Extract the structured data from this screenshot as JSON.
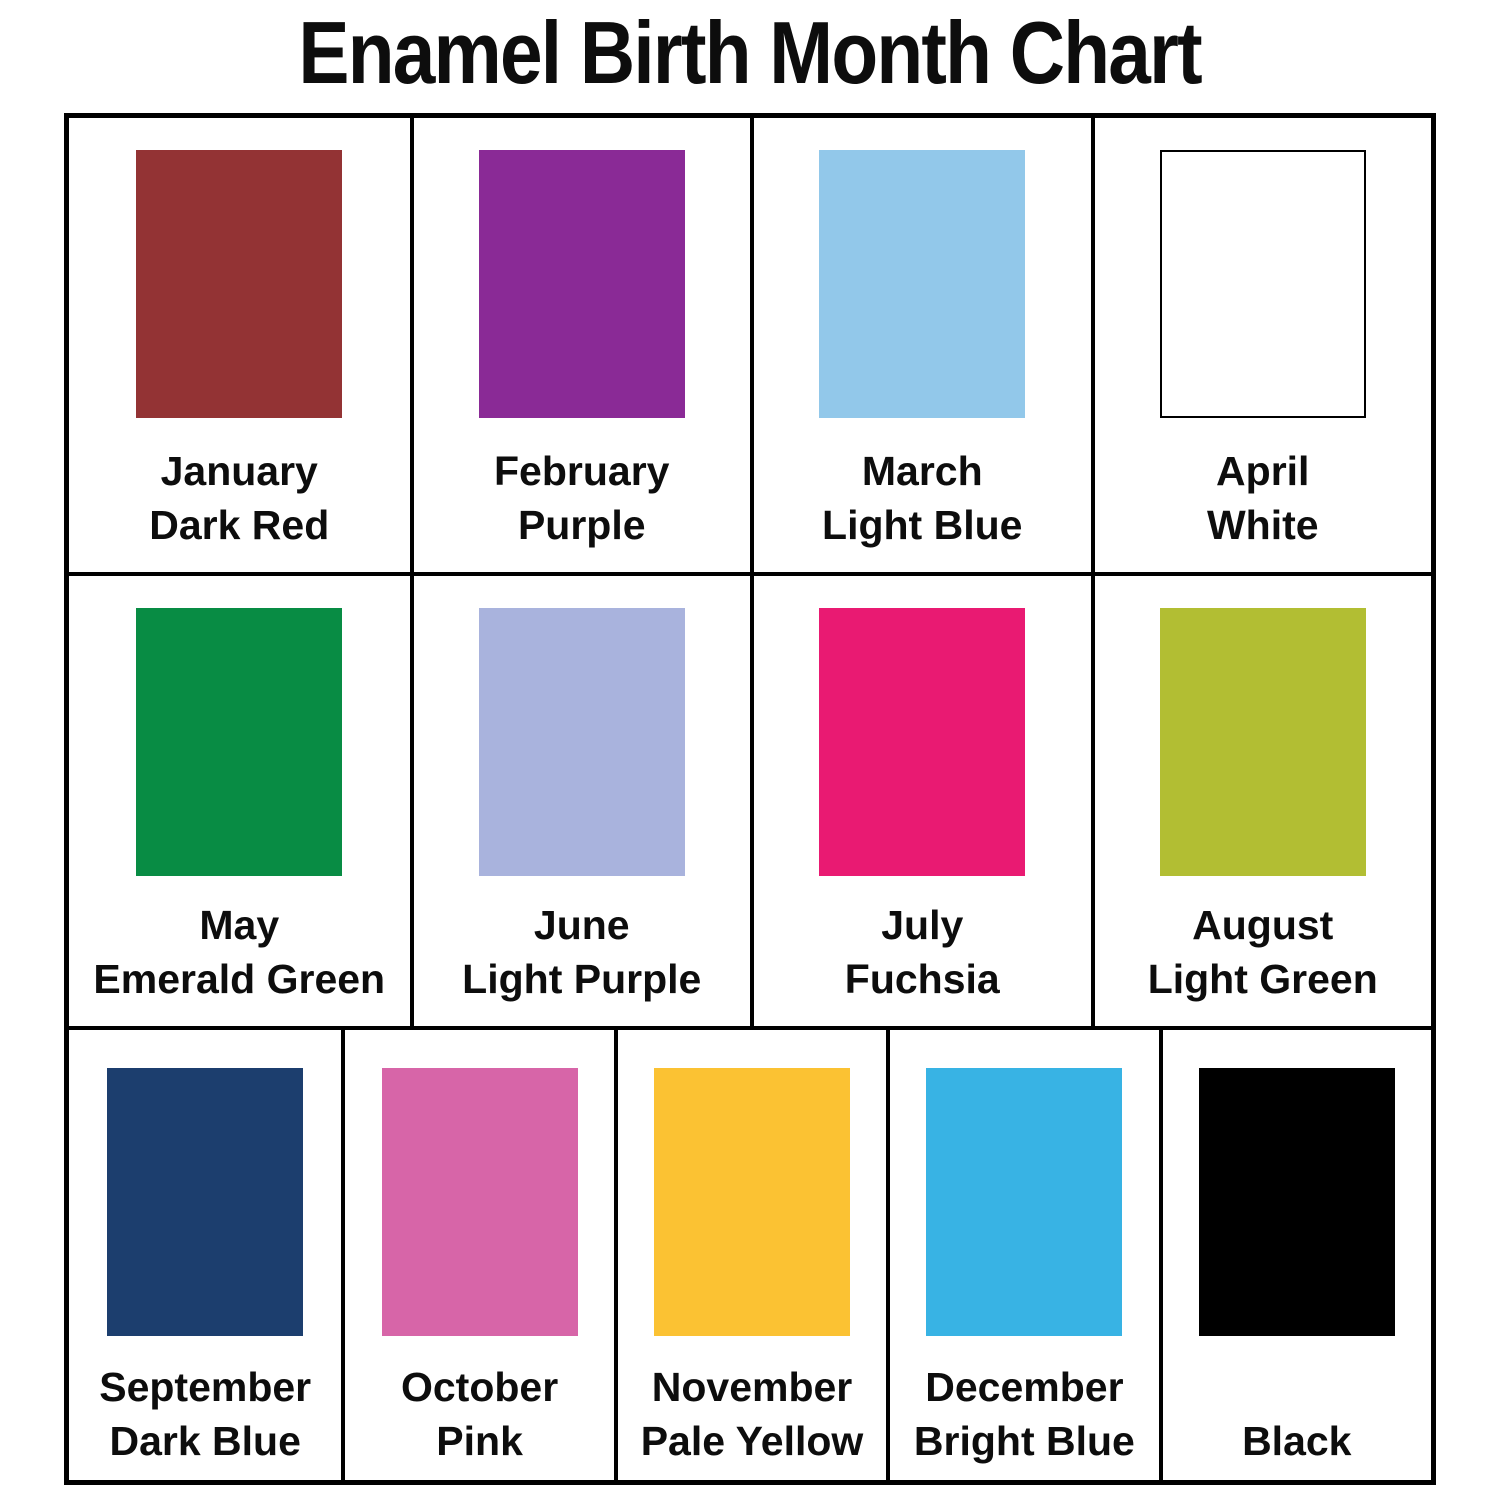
{
  "title": "Enamel Birth Month Chart",
  "palette": {
    "background": "#ffffff",
    "grid_border": "#000000",
    "label_text": "#0d0d0d"
  },
  "chart_data": {
    "type": "table",
    "title": "Enamel Birth Month Chart",
    "description": "Grid of enamel color swatches by birth month",
    "rows_layout": [
      4,
      4,
      5
    ],
    "entries": [
      {
        "month": "January",
        "color": "Dark Red",
        "hex": "#933334"
      },
      {
        "month": "February",
        "color": "Purple",
        "hex": "#8A2A96"
      },
      {
        "month": "March",
        "color": "Light Blue",
        "hex": "#92C8EA"
      },
      {
        "month": "April",
        "color": "White",
        "hex": "#FFFFFF"
      },
      {
        "month": "May",
        "color": "Emerald Green",
        "hex": "#088C44"
      },
      {
        "month": "June",
        "color": "Light Purple",
        "hex": "#A9B3DD"
      },
      {
        "month": "July",
        "color": "Fuchsia",
        "hex": "#E91A72"
      },
      {
        "month": "August",
        "color": "Light Green",
        "hex": "#B2BE33"
      },
      {
        "month": "September",
        "color": "Dark Blue",
        "hex": "#1C3E6E"
      },
      {
        "month": "October",
        "color": "Pink",
        "hex": "#D765A8"
      },
      {
        "month": "November",
        "color": "Pale Yellow",
        "hex": "#FBC233"
      },
      {
        "month": "December",
        "color": "Bright Blue",
        "hex": "#38B3E4"
      },
      {
        "month": "",
        "color": "Black",
        "hex": "#000000"
      }
    ]
  }
}
